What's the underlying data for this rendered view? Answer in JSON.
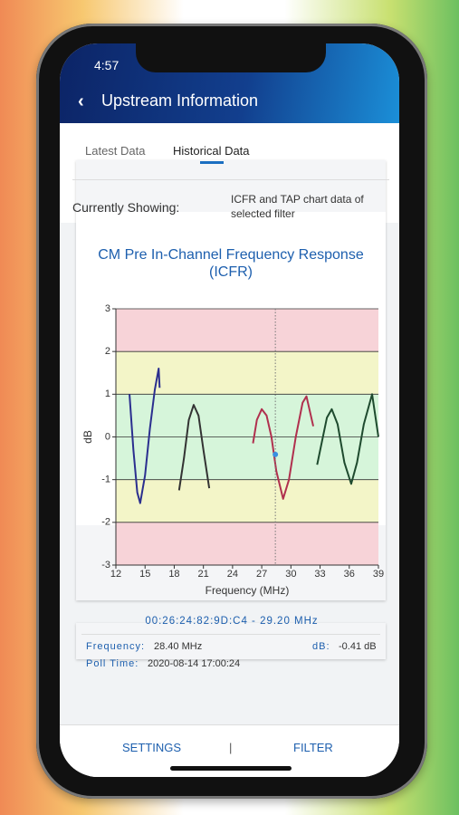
{
  "status_bar": {
    "time": "4:57"
  },
  "header": {
    "title": "Upstream Information"
  },
  "tabs": [
    "Latest Data",
    "Historical Data"
  ],
  "active_tab": 1,
  "filter": {
    "label": "Currently Showing:",
    "value": "ICFR and TAP chart data of selected filter"
  },
  "card": {
    "title": "CM Pre In-Channel Frequency Response (ICFR)",
    "chart_data": {
      "type": "line",
      "xlabel": "Frequency (MHz)",
      "ylabel": "dB",
      "xlim": [
        12,
        39
      ],
      "ylim": [
        -3,
        3
      ],
      "xticks": [
        12,
        15,
        18,
        21,
        24,
        27,
        30,
        33,
        36,
        39
      ],
      "yticks": [
        -3,
        -2,
        -1,
        0,
        1,
        2,
        3
      ],
      "grid": true,
      "bands": [
        {
          "from": 2,
          "to": 3,
          "color": "#f7d3d8"
        },
        {
          "from": 1,
          "to": 2,
          "color": "#f3f5c8"
        },
        {
          "from": -1,
          "to": 1,
          "color": "#d6f5da"
        },
        {
          "from": -2,
          "to": -1,
          "color": "#f3f5c8"
        },
        {
          "from": -3,
          "to": -2,
          "color": "#f7d3d8"
        }
      ],
      "series": [
        {
          "color": "#2b2f8f",
          "x": [
            13.4,
            13.8,
            14.2,
            14.5,
            15.0,
            15.5,
            16.0,
            16.4,
            16.5
          ],
          "values": [
            1.0,
            -0.3,
            -1.3,
            -1.55,
            -0.9,
            0.2,
            1.1,
            1.6,
            1.15
          ]
        },
        {
          "color": "#333333",
          "x": [
            18.5,
            19.0,
            19.5,
            20.0,
            20.5,
            21.0,
            21.6
          ],
          "values": [
            -1.25,
            -0.5,
            0.4,
            0.75,
            0.5,
            -0.3,
            -1.2
          ]
        },
        {
          "color": "#b0304e",
          "x": [
            26.1,
            26.5,
            27.0,
            27.5,
            28.0,
            28.5,
            29.2,
            29.8,
            30.5,
            31.2,
            31.6,
            32.3
          ],
          "values": [
            -0.15,
            0.4,
            0.65,
            0.5,
            0.0,
            -0.8,
            -1.45,
            -1.0,
            0.0,
            0.8,
            0.95,
            0.25
          ]
        },
        {
          "color": "#1e4a2e",
          "x": [
            32.7,
            33.2,
            33.7,
            34.2,
            34.8,
            35.5,
            36.2,
            36.8,
            37.5,
            38.35,
            39.0
          ],
          "values": [
            -0.65,
            -0.1,
            0.45,
            0.65,
            0.3,
            -0.6,
            -1.1,
            -0.6,
            0.3,
            1.0,
            0.0
          ]
        }
      ],
      "cursor": {
        "x": 28.4,
        "y": -0.41,
        "color": "#3a8fe0"
      }
    },
    "info": {
      "device": "00:26:24:82:9D:C4 - 29.20 MHz",
      "frequency_label": "Frequency:",
      "frequency": "28.40 MHz",
      "db_label": "dB:",
      "db": "-0.41 dB",
      "poll_time_label": "Poll Time:",
      "poll_time": "2020-08-14 17:00:24"
    }
  },
  "footer": {
    "buttons": [
      "SETTINGS",
      "FILTER"
    ],
    "separator": "|"
  }
}
